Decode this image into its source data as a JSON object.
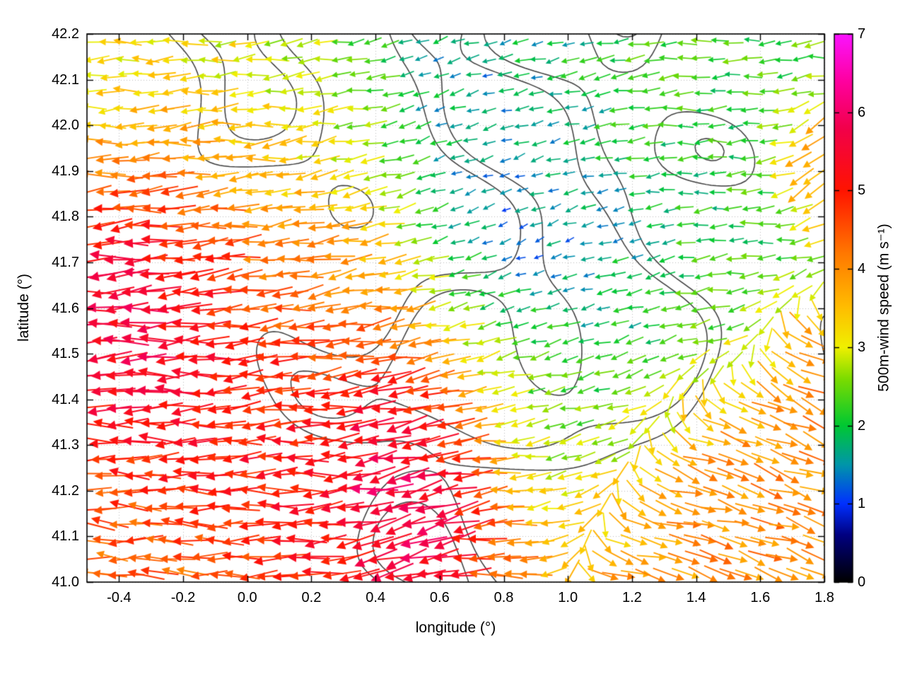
{
  "figure": {
    "background": "#ffffff",
    "plot_border_color": "#000000",
    "grid_dot_color": "#bcbcbc"
  },
  "chart_data": {
    "type": "quiver",
    "title": "",
    "xlabel": "longitude (°)",
    "ylabel": "latitude (°)",
    "xlim": [
      -0.5,
      1.8
    ],
    "ylim": [
      41.0,
      42.2
    ],
    "xticks": [
      -0.4,
      -0.2,
      0.0,
      0.2,
      0.4,
      0.6,
      0.8,
      1.0,
      1.2,
      1.4,
      1.6,
      1.8
    ],
    "xtick_labels": [
      "-0.4",
      "-0.2",
      "0.0",
      "0.2",
      "0.4",
      "0.6",
      "0.8",
      "1.0",
      "1.2",
      "1.4",
      "1.6",
      "1.8"
    ],
    "yticks": [
      41.0,
      41.1,
      41.2,
      41.3,
      41.4,
      41.5,
      41.6,
      41.7,
      41.8,
      41.9,
      42.0,
      42.1,
      42.2
    ],
    "ytick_labels": [
      "41.0",
      "41.1",
      "41.2",
      "41.3",
      "41.4",
      "41.5",
      "41.6",
      "41.7",
      "41.8",
      "41.9",
      "42.0",
      "42.1",
      "42.2"
    ],
    "grid": true,
    "colorbar": {
      "label": "500m-wind speed (m s⁻¹)",
      "min": 0,
      "max": 7,
      "ticks": [
        0,
        1,
        2,
        3,
        4,
        5,
        6,
        7
      ],
      "tick_labels": [
        "0",
        "1",
        "2",
        "3",
        "4",
        "5",
        "6",
        "7"
      ],
      "palette": [
        [
          0.0,
          "#000000"
        ],
        [
          0.6,
          "#000080"
        ],
        [
          1.0,
          "#0030ff"
        ],
        [
          1.5,
          "#0096aa"
        ],
        [
          2.0,
          "#00c832"
        ],
        [
          2.6,
          "#7ddc00"
        ],
        [
          3.0,
          "#f0f000"
        ],
        [
          3.5,
          "#ffbe00"
        ],
        [
          4.2,
          "#ff7800"
        ],
        [
          5.0,
          "#ff1400"
        ],
        [
          5.8,
          "#f2004b"
        ],
        [
          6.4,
          "#ff00a0"
        ],
        [
          7.0,
          "#fa14ff"
        ]
      ]
    },
    "vector_grid": {
      "nx": 45,
      "ny": 33
    },
    "base_flow": {
      "speed": 2.8,
      "dir_deg": 184
    },
    "wind_regions": [
      {
        "lon": -0.3,
        "lat": 42.12,
        "r": 0.3,
        "speed": 3.2,
        "dir": 182
      },
      {
        "lon": 0.2,
        "lat": 42.18,
        "r": 0.2,
        "speed": 3.0,
        "dir": 183
      },
      {
        "lon": 0.1,
        "lat": 41.95,
        "r": 0.25,
        "speed": 2.6,
        "dir": 185
      },
      {
        "lon": 0.55,
        "lat": 42.05,
        "r": 0.35,
        "speed": 1.2,
        "dir": 200
      },
      {
        "lon": 0.95,
        "lat": 42.1,
        "r": 0.25,
        "speed": 1.8,
        "dir": 190
      },
      {
        "lon": 1.4,
        "lat": 42.05,
        "r": 0.3,
        "speed": 2.2,
        "dir": 183
      },
      {
        "lon": 0.85,
        "lat": 41.7,
        "r": 0.3,
        "speed": 0.6,
        "dir": 210
      },
      {
        "lon": 1.15,
        "lat": 41.55,
        "r": 0.25,
        "speed": 1.5,
        "dir": 195
      },
      {
        "lon": 1.55,
        "lat": 41.75,
        "r": 0.3,
        "speed": 1.8,
        "dir": 185
      },
      {
        "lon": -0.35,
        "lat": 41.55,
        "r": 0.28,
        "speed": 6.6,
        "dir": 184
      },
      {
        "lon": -0.1,
        "lat": 41.68,
        "r": 0.3,
        "speed": 5.4,
        "dir": 186
      },
      {
        "lon": 0.25,
        "lat": 41.78,
        "r": 0.3,
        "speed": 4.3,
        "dir": 190
      },
      {
        "lon": 0.35,
        "lat": 41.6,
        "r": 0.2,
        "speed": 4.6,
        "dir": 188
      },
      {
        "lon": -0.3,
        "lat": 41.3,
        "r": 0.3,
        "speed": 5.0,
        "dir": 178
      },
      {
        "lon": -0.4,
        "lat": 41.05,
        "r": 0.25,
        "speed": 4.3,
        "dir": 176
      },
      {
        "lon": 0.15,
        "lat": 41.25,
        "r": 0.3,
        "speed": 5.6,
        "dir": 182
      },
      {
        "lon": 0.55,
        "lat": 41.35,
        "r": 0.22,
        "speed": 6.8,
        "dir": 192
      },
      {
        "lon": 0.55,
        "lat": 41.1,
        "r": 0.2,
        "speed": 6.5,
        "dir": 205
      },
      {
        "lon": 0.75,
        "lat": 41.05,
        "r": 0.18,
        "speed": 4.8,
        "dir": 175
      },
      {
        "lon": 0.8,
        "lat": 41.45,
        "r": 0.25,
        "speed": 3.2,
        "dir": 183
      },
      {
        "lon": 1.0,
        "lat": 41.3,
        "r": 0.2,
        "speed": 2.4,
        "dir": 186
      },
      {
        "lon": 1.3,
        "lat": 41.12,
        "r": 0.35,
        "speed": 4.2,
        "dir": 350
      },
      {
        "lon": 1.7,
        "lat": 41.25,
        "r": 0.3,
        "speed": 4.4,
        "dir": 345
      },
      {
        "lon": 1.78,
        "lat": 41.5,
        "r": 0.15,
        "speed": 4.6,
        "dir": 340
      },
      {
        "lon": 1.78,
        "lat": 41.9,
        "r": 0.12,
        "speed": 5.2,
        "dir": 250
      }
    ],
    "contours": {
      "color": "#3c3c3c",
      "line_width": 1.5,
      "levels": [
        1.4,
        2.9
      ],
      "seed": 11
    }
  }
}
